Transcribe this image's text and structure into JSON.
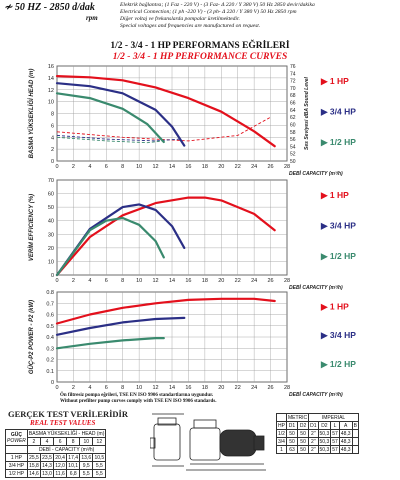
{
  "header": {
    "freq": "50 HZ - 2850 d/dak",
    "rpm": "rpm",
    "lines": [
      "Elektrik bağlantısı; (1 Faz - 220 V) - (3 Faz- Δ 220 / Y 380 V) 50 Hz 2850 devir/dakika",
      "Electrical Connection; (1 ph -220 V) - (3 ph- Δ 220 / Y 380 V) 50 Hz 2850 rpm",
      "Diğer voltaj ve frekanslarda pompalar üretilmektedir.",
      "Special voltages and frequencies  are manufactured on request."
    ]
  },
  "title_tr": "1/2 - 3/4 - 1 HP PERFORMANS EĞRİLERİ",
  "title_en": "1/2 - 3/4 - 1 HP PERFORMANCE CURVES",
  "series_labels": [
    "1 HP",
    "3/4 HP",
    "1/2 HP"
  ],
  "colors": {
    "hp1": "#e3101c",
    "hp34": "#2b2f86",
    "hp12": "#3a8a6e",
    "accent": "#e3101c"
  },
  "note": [
    "Ön filtresiz pompa eğrileri, TSE EN ISO 9906 standartlarına uygundur.",
    "Without prefilter pump curves comply with TSE EN ISO 9906 standards."
  ],
  "real_test": {
    "title": "GERÇEK TEST VERİLERİDİR",
    "subtitle": "REAL TEST VALUES",
    "power_label": "GÜÇ",
    "power_label_en": "POWER",
    "head_label": "BASMA YÜKSEKLİĞİ - HEAD (m)",
    "flow_label": "DEBİ - CAPACITY (m³/h)",
    "heads": [
      "2",
      "4",
      "6",
      "8",
      "10",
      "12"
    ],
    "rows": [
      {
        "hp": "1 HP",
        "values": [
          "25,5",
          "23,5",
          "20,4",
          "17,4",
          "13,6",
          "10,5"
        ]
      },
      {
        "hp": "3/4 HP",
        "values": [
          "15,8",
          "14,3",
          "12,0",
          "10,1",
          "9,5",
          "5,5"
        ]
      },
      {
        "hp": "1/2 HP",
        "values": [
          "14,6",
          "13,0",
          "11,6",
          "6,8",
          "5,5",
          "5,5"
        ]
      }
    ]
  },
  "dimensions": {
    "headers": [
      "HP",
      "D1",
      "D2",
      "D1",
      "D2",
      "L",
      "A",
      "B"
    ],
    "top_headers": [
      "METRIC",
      "IMPERIAL"
    ],
    "rows": [
      {
        "hp": "1/2",
        "values": [
          "50",
          "50",
          "2\"",
          "50,3",
          "57",
          "48,3"
        ]
      },
      {
        "hp": "3/4",
        "values": [
          "50",
          "50",
          "2\"",
          "50,3",
          "57",
          "48,3"
        ]
      },
      {
        "hp": "1",
        "values": [
          "63",
          "50",
          "2\"",
          "50,3",
          "57",
          "48,3"
        ]
      }
    ]
  },
  "chart_data": [
    {
      "type": "line",
      "title": "",
      "xlabel": "DEBİ CAPACITY (m³/h)",
      "ylabel": "BASMA YÜKSEKLİĞİ HEAD (m)",
      "y2label": "Ses Seviyesi dBA Sound Level",
      "xlim": [
        0,
        28
      ],
      "ylim": [
        0,
        16
      ],
      "y2lim": [
        50,
        76
      ],
      "x_ticks": [
        0,
        2,
        4,
        6,
        8,
        10,
        12,
        14,
        16,
        18,
        20,
        22,
        24,
        26,
        28
      ],
      "y_ticks": [
        0,
        2,
        4,
        6,
        8,
        10,
        12,
        14,
        16
      ],
      "y2_ticks": [
        50,
        52,
        54,
        56,
        58,
        60,
        62,
        64,
        66,
        68,
        70,
        72,
        74,
        76
      ],
      "series": [
        {
          "name": "1 HP",
          "x": [
            0,
            4,
            8,
            12,
            16,
            20,
            24,
            26.5
          ],
          "y": [
            14.3,
            14.1,
            13.6,
            12.4,
            10.6,
            8.3,
            5.0,
            2.5
          ]
        },
        {
          "name": "3/4 HP",
          "x": [
            0,
            4,
            8,
            12,
            14,
            15.5
          ],
          "y": [
            13.1,
            12.6,
            11.4,
            8.6,
            5.8,
            2.6
          ]
        },
        {
          "name": "1/2 HP",
          "x": [
            0,
            4,
            8,
            11,
            13
          ],
          "y": [
            11.4,
            10.6,
            8.8,
            6.2,
            3.2
          ]
        }
      ],
      "sound_series": [
        {
          "name": "1 HP",
          "x": [
            0,
            8,
            16,
            22,
            26
          ],
          "y": [
            58,
            56.5,
            55.5,
            57,
            62
          ]
        },
        {
          "name": "3/4 HP",
          "x": [
            0,
            6,
            12,
            15
          ],
          "y": [
            57,
            56,
            55.5,
            56
          ]
        },
        {
          "name": "1/2 HP",
          "x": [
            0,
            6,
            11,
            13
          ],
          "y": [
            56.5,
            55.5,
            55,
            55.5
          ]
        }
      ]
    },
    {
      "type": "line",
      "title": "",
      "xlabel": "DEBİ CAPACITY (m³/h)",
      "ylabel": "VERİM EFFICIENCY (%)",
      "xlim": [
        0,
        28
      ],
      "ylim": [
        0,
        70
      ],
      "x_ticks": [
        0,
        2,
        4,
        6,
        8,
        10,
        12,
        14,
        16,
        18,
        20,
        22,
        24,
        26,
        28
      ],
      "y_ticks": [
        0,
        10,
        20,
        30,
        40,
        50,
        60,
        70
      ],
      "series": [
        {
          "name": "1 HP",
          "x": [
            0,
            4,
            8,
            12,
            16,
            18,
            20,
            24,
            26.5
          ],
          "y": [
            0,
            28,
            44,
            53,
            57,
            57,
            55,
            45,
            33
          ]
        },
        {
          "name": "3/4 HP",
          "x": [
            0,
            4,
            8,
            10,
            12,
            14,
            15.5
          ],
          "y": [
            0,
            34,
            50,
            52,
            48,
            36,
            20
          ]
        },
        {
          "name": "1/2 HP",
          "x": [
            0,
            4,
            6,
            8,
            10,
            12,
            13
          ],
          "y": [
            0,
            33,
            40,
            42,
            37,
            25,
            13
          ]
        }
      ]
    },
    {
      "type": "line",
      "title": "",
      "xlabel": "DEBİ CAPACITY (m³/h)",
      "ylabel": "GÜÇ-P2 POWER - P2 (kW)",
      "xlim": [
        0,
        28
      ],
      "ylim": [
        0,
        0.8
      ],
      "x_ticks": [
        0,
        2,
        4,
        6,
        8,
        10,
        12,
        14,
        16,
        18,
        20,
        22,
        24,
        26,
        28
      ],
      "y_ticks": [
        0,
        0.1,
        0.2,
        0.3,
        0.4,
        0.5,
        0.6,
        0.7,
        0.8
      ],
      "series": [
        {
          "name": "1 HP",
          "x": [
            0,
            4,
            8,
            12,
            16,
            20,
            24,
            26.5
          ],
          "y": [
            0.52,
            0.6,
            0.66,
            0.7,
            0.73,
            0.74,
            0.74,
            0.72
          ]
        },
        {
          "name": "3/4 HP",
          "x": [
            0,
            4,
            8,
            12,
            15.5
          ],
          "y": [
            0.42,
            0.48,
            0.53,
            0.56,
            0.57
          ]
        },
        {
          "name": "1/2 HP",
          "x": [
            0,
            4,
            8,
            12,
            13
          ],
          "y": [
            0.3,
            0.34,
            0.37,
            0.39,
            0.39
          ]
        }
      ]
    }
  ]
}
